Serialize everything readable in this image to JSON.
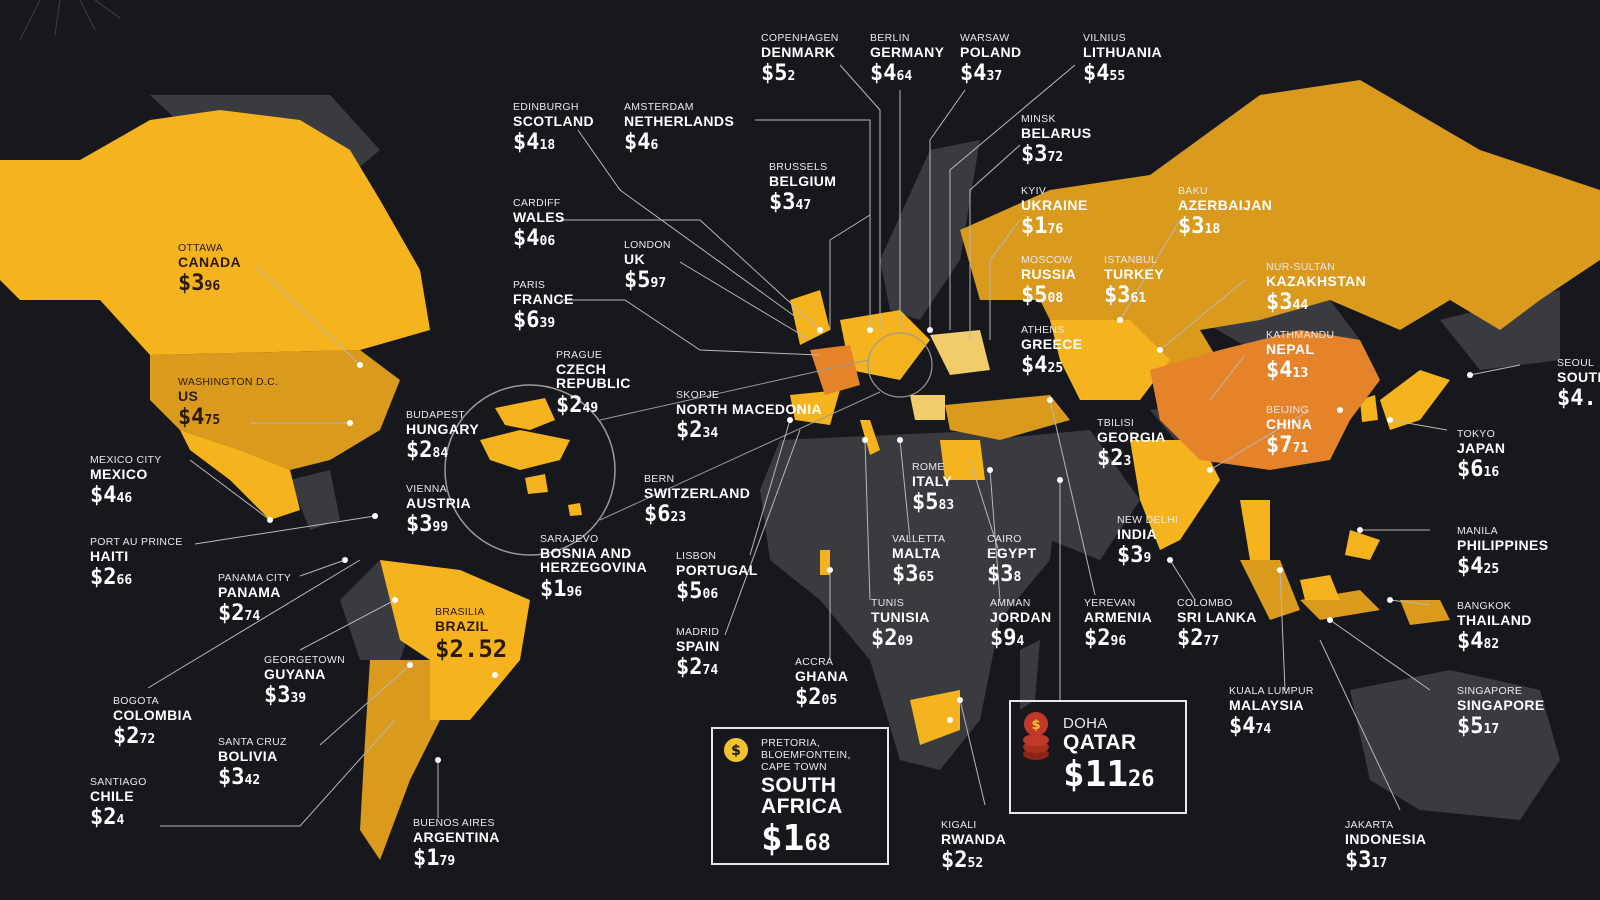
{
  "colors": {
    "background": "#17181d",
    "land_dark": "#3a3b41",
    "tier_low": "#f1cc6a",
    "tier_mid": "#f5b31d",
    "tier_high": "#d99a1e",
    "tier_top": "#e5832b",
    "accent_red": "#c0392b",
    "coin_gold": "#f2c230"
  },
  "cities": [
    {
      "id": "canada",
      "capital": "OTTAWA",
      "country": "CANADA",
      "price_whole": "$3",
      "price_cents": "96"
    },
    {
      "id": "us",
      "capital": "WASHINGTON D.C.",
      "country": "US",
      "price_whole": "$4",
      "price_cents": "75"
    },
    {
      "id": "mexico",
      "capital": "MEXICO CITY",
      "country": "MEXICO",
      "price_whole": "$4",
      "price_cents": "46"
    },
    {
      "id": "haiti",
      "capital": "PORT AU PRINCE",
      "country": "HAITI",
      "price_whole": "$2",
      "price_cents": "66"
    },
    {
      "id": "panama",
      "capital": "PANAMA CITY",
      "country": "PANAMA",
      "price_whole": "$2",
      "price_cents": "74"
    },
    {
      "id": "guyana",
      "capital": "GEORGETOWN",
      "country": "GUYANA",
      "price_whole": "$3",
      "price_cents": "39"
    },
    {
      "id": "colombia",
      "capital": "BOGOTA",
      "country": "COLOMBIA",
      "price_whole": "$2",
      "price_cents": "72"
    },
    {
      "id": "bolivia",
      "capital": "SANTA CRUZ",
      "country": "BOLIVIA",
      "price_whole": "$3",
      "price_cents": "42"
    },
    {
      "id": "chile",
      "capital": "SANTIAGO",
      "country": "CHILE",
      "price_whole": "$2",
      "price_cents": "4"
    },
    {
      "id": "argentina",
      "capital": "BUENOS AIRES",
      "country": "ARGENTINA",
      "price_whole": "$1",
      "price_cents": "79"
    },
    {
      "id": "brazil",
      "capital": "BRASILIA",
      "country": "BRAZIL",
      "price_whole": "$2.52",
      "price_cents": ""
    },
    {
      "id": "scotland",
      "capital": "EDINBURGH",
      "country": "SCOTLAND",
      "price_whole": "$4",
      "price_cents": "18"
    },
    {
      "id": "wales",
      "capital": "CARDIFF",
      "country": "WALES",
      "price_whole": "$4",
      "price_cents": "06"
    },
    {
      "id": "france",
      "capital": "PARIS",
      "country": "FRANCE",
      "price_whole": "$6",
      "price_cents": "39"
    },
    {
      "id": "netherlands",
      "capital": "AMSTERDAM",
      "country": "NETHERLANDS",
      "price_whole": "$4",
      "price_cents": "6"
    },
    {
      "id": "uk",
      "capital": "LONDON",
      "country": "UK",
      "price_whole": "$5",
      "price_cents": "97"
    },
    {
      "id": "belgium",
      "capital": "BRUSSELS",
      "country": "BELGIUM",
      "price_whole": "$3",
      "price_cents": "47"
    },
    {
      "id": "denmark",
      "capital": "COPENHAGEN",
      "country": "DENMARK",
      "price_whole": "$5",
      "price_cents": "2"
    },
    {
      "id": "germany",
      "capital": "BERLIN",
      "country": "GERMANY",
      "price_whole": "$4",
      "price_cents": "64"
    },
    {
      "id": "poland",
      "capital": "WARSAW",
      "country": "POLAND",
      "price_whole": "$4",
      "price_cents": "37"
    },
    {
      "id": "lithuania",
      "capital": "VILNIUS",
      "country": "LITHUANIA",
      "price_whole": "$4",
      "price_cents": "55"
    },
    {
      "id": "belarus",
      "capital": "MINSK",
      "country": "BELARUS",
      "price_whole": "$3",
      "price_cents": "72"
    },
    {
      "id": "ukraine",
      "capital": "KYIV",
      "country": "UKRAINE",
      "price_whole": "$1",
      "price_cents": "76"
    },
    {
      "id": "russia",
      "capital": "MOSCOW",
      "country": "RUSSIA",
      "price_whole": "$5",
      "price_cents": "08"
    },
    {
      "id": "turkey",
      "capital": "ISTANBUL",
      "country": "TURKEY",
      "price_whole": "$3",
      "price_cents": "61"
    },
    {
      "id": "greece",
      "capital": "ATHENS",
      "country": "GREECE",
      "price_whole": "$4",
      "price_cents": "25"
    },
    {
      "id": "azerbaijan",
      "capital": "BAKU",
      "country": "AZERBAIJAN",
      "price_whole": "$3",
      "price_cents": "18"
    },
    {
      "id": "kazakhstan",
      "capital": "NUR-SULTAN",
      "country": "KAZAKHSTAN",
      "price_whole": "$3",
      "price_cents": "44"
    },
    {
      "id": "nepal",
      "capital": "KATHMANDU",
      "country": "NEPAL",
      "price_whole": "$4",
      "price_cents": "13"
    },
    {
      "id": "china",
      "capital": "BEIJING",
      "country": "CHINA",
      "price_whole": "$7",
      "price_cents": "71"
    },
    {
      "id": "south_korea",
      "capital": "SEOUL",
      "country": "SOUTH KOREA",
      "price_whole": "$4.",
      "price_cents": ""
    },
    {
      "id": "japan",
      "capital": "TOKYO",
      "country": "JAPAN",
      "price_whole": "$6",
      "price_cents": "16"
    },
    {
      "id": "georgia",
      "capital": "TBILISI",
      "country": "GEORGIA",
      "price_whole": "$2",
      "price_cents": "3"
    },
    {
      "id": "czech",
      "capital": "PRAGUE",
      "country": "CZECH REPUBLIC",
      "price_whole": "$2",
      "price_cents": "49"
    },
    {
      "id": "hungary",
      "capital": "BUDAPEST",
      "country": "HUNGARY",
      "price_whole": "$2",
      "price_cents": "84"
    },
    {
      "id": "austria",
      "capital": "VIENNA",
      "country": "AUSTRIA",
      "price_whole": "$3",
      "price_cents": "99"
    },
    {
      "id": "bosnia",
      "capital": "SARAJEVO",
      "country": "BOSNIA AND HERZEGOVINA",
      "price_whole": "$1",
      "price_cents": "96"
    },
    {
      "id": "north_macedonia",
      "capital": "SKOPJE",
      "country": "NORTH MACEDONIA",
      "price_whole": "$2",
      "price_cents": "34"
    },
    {
      "id": "switzerland",
      "capital": "BERN",
      "country": "SWITZERLAND",
      "price_whole": "$6",
      "price_cents": "23"
    },
    {
      "id": "portugal",
      "capital": "LISBON",
      "country": "PORTUGAL",
      "price_whole": "$5",
      "price_cents": "06"
    },
    {
      "id": "spain",
      "capital": "MADRID",
      "country": "SPAIN",
      "price_whole": "$2",
      "price_cents": "74"
    },
    {
      "id": "ghana",
      "capital": "ACCRA",
      "country": "GHANA",
      "price_whole": "$2",
      "price_cents": "05"
    },
    {
      "id": "italy",
      "capital": "ROME",
      "country": "ITALY",
      "price_whole": "$5",
      "price_cents": "83"
    },
    {
      "id": "malta",
      "capital": "VALLETTA",
      "country": "MALTA",
      "price_whole": "$3",
      "price_cents": "65"
    },
    {
      "id": "tunisia",
      "capital": "TUNIS",
      "country": "TUNISIA",
      "price_whole": "$2",
      "price_cents": "09"
    },
    {
      "id": "egypt",
      "capital": "CAIRO",
      "country": "EGYPT",
      "price_whole": "$3",
      "price_cents": "8"
    },
    {
      "id": "jordan",
      "capital": "AMMAN",
      "country": "JORDAN",
      "price_whole": "$9",
      "price_cents": "4"
    },
    {
      "id": "rwanda",
      "capital": "KIGALI",
      "country": "RWANDA",
      "price_whole": "$2",
      "price_cents": "52"
    },
    {
      "id": "armenia",
      "capital": "YEREVAN",
      "country": "ARMENIA",
      "price_whole": "$2",
      "price_cents": "96"
    },
    {
      "id": "india",
      "capital": "NEW DELHI",
      "country": "INDIA",
      "price_whole": "$3",
      "price_cents": "9"
    },
    {
      "id": "sri_lanka",
      "capital": "COLOMBO",
      "country": "SRI LANKA",
      "price_whole": "$2",
      "price_cents": "77"
    },
    {
      "id": "malaysia",
      "capital": "KUALA LUMPUR",
      "country": "MALAYSIA",
      "price_whole": "$4",
      "price_cents": "74"
    },
    {
      "id": "philippines",
      "capital": "MANILA",
      "country": "PHILIPPINES",
      "price_whole": "$4",
      "price_cents": "25"
    },
    {
      "id": "thailand",
      "capital": "BANGKOK",
      "country": "THAILAND",
      "price_whole": "$4",
      "price_cents": "82"
    },
    {
      "id": "singapore",
      "capital": "SINGAPORE",
      "country": "SINGAPORE",
      "price_whole": "$5",
      "price_cents": "17"
    },
    {
      "id": "indonesia",
      "capital": "JAKARTA",
      "country": "INDONESIA",
      "price_whole": "$3",
      "price_cents": "17"
    }
  ],
  "callouts": {
    "south_africa": {
      "capital": "PRETORIA, BLOEMFONTEIN, CAPE TOWN",
      "country": "SOUTH AFRICA",
      "price_whole": "$1",
      "price_cents": "68",
      "icon": "dollar-coin-icon"
    },
    "qatar": {
      "capital": "DOHA",
      "country": "QATAR",
      "price_whole": "$11",
      "price_cents": "26",
      "icon": "coin-stack-icon"
    }
  }
}
